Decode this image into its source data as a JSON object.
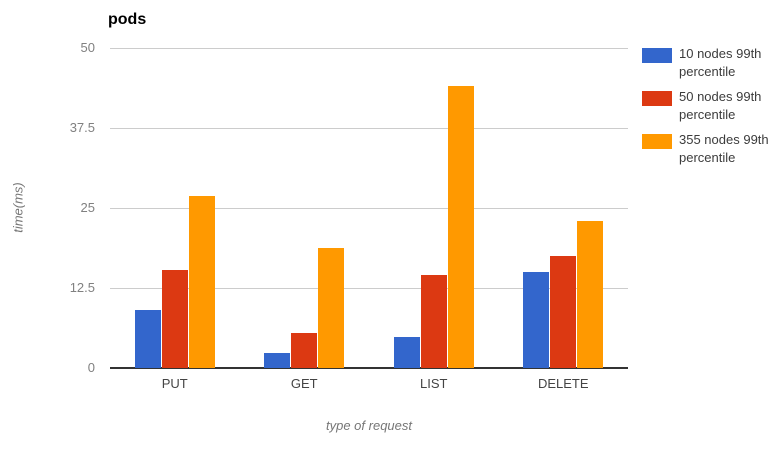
{
  "chart_data": {
    "type": "bar",
    "title": "pods",
    "xlabel": "type of request",
    "ylabel": "time(ms)",
    "categories": [
      "PUT",
      "GET",
      "LIST",
      "DELETE"
    ],
    "series": [
      {
        "name": "10 nodes 99th percentile",
        "color": "#3366CC",
        "values": [
          9,
          2.3,
          4.8,
          15
        ]
      },
      {
        "name": "50 nodes 99th percentile",
        "color": "#DC3912",
        "values": [
          15.3,
          5.4,
          14.6,
          17.5
        ]
      },
      {
        "name": "355 nodes 99th percentile",
        "color": "#FF9900",
        "values": [
          26.8,
          18.8,
          44,
          23
        ]
      }
    ],
    "ylim": [
      0,
      50
    ],
    "yticks": [
      0,
      12.5,
      25,
      37.5,
      50
    ],
    "grid": true,
    "legend_position": "right"
  },
  "colors": {
    "gridline": "#cccccc",
    "axis_line": "#333333",
    "y_tick_text": "#808080",
    "x_tick_text": "#444444",
    "axis_title_text": "#777777",
    "legend_text": "#3c3c3c",
    "background": "#ffffff"
  }
}
